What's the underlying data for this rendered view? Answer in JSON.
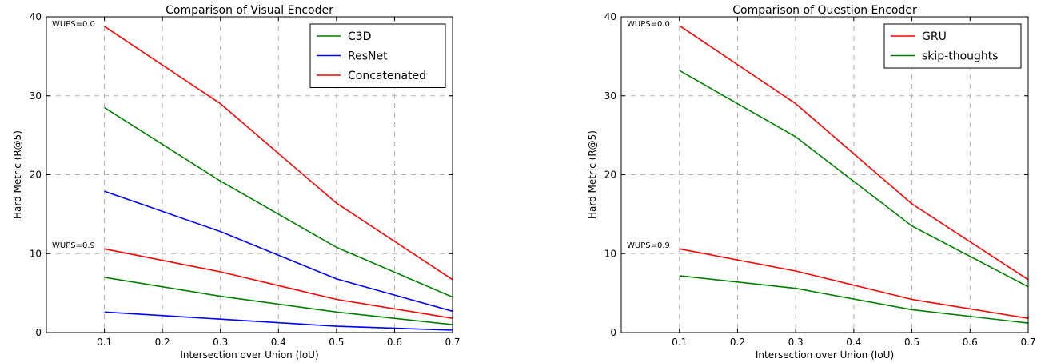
{
  "chart_data": [
    {
      "type": "line",
      "title": "Comparison of Visual Encoder",
      "xlabel": "Intersection over Union (IoU)",
      "ylabel": "Hard Metric (R@5)",
      "xlim": [
        0.0,
        0.7
      ],
      "ylim": [
        0,
        40
      ],
      "xticks": [
        "0.1",
        "0.2",
        "0.3",
        "0.4",
        "0.5",
        "0.6",
        "0.7"
      ],
      "yticks": [
        "0",
        "10",
        "20",
        "30",
        "40"
      ],
      "grid": true,
      "legend_position": "top-right",
      "annotations": [
        "WUPS=0.0",
        "WUPS=0.9"
      ],
      "legend": [
        {
          "label": "C3D",
          "color": "#008000"
        },
        {
          "label": "ResNet",
          "color": "#0000ff"
        },
        {
          "label": "Concatenated",
          "color": "#ff0000"
        }
      ],
      "x": [
        0.1,
        0.3,
        0.5,
        0.7
      ],
      "series": [
        {
          "color": "#ff0000",
          "values": [
            38.8,
            29.0,
            16.4,
            6.7
          ]
        },
        {
          "color": "#008000",
          "values": [
            28.5,
            19.2,
            10.8,
            4.5
          ]
        },
        {
          "color": "#0000ff",
          "values": [
            17.9,
            12.8,
            6.8,
            2.7
          ]
        },
        {
          "color": "#ff0000",
          "values": [
            10.6,
            7.7,
            4.2,
            1.8
          ]
        },
        {
          "color": "#008000",
          "values": [
            7.0,
            4.6,
            2.6,
            1.0
          ]
        },
        {
          "color": "#0000ff",
          "values": [
            2.6,
            1.7,
            0.8,
            0.3
          ]
        }
      ]
    },
    {
      "type": "line",
      "title": "Comparison of Question Encoder",
      "xlabel": "Intersection over Union (IoU)",
      "ylabel": "Hard Metric (R@5)",
      "xlim": [
        0.0,
        0.7
      ],
      "ylim": [
        0,
        40
      ],
      "xticks": [
        "0.1",
        "0.2",
        "0.3",
        "0.4",
        "0.5",
        "0.6",
        "0.7"
      ],
      "yticks": [
        "0",
        "10",
        "20",
        "30",
        "40"
      ],
      "grid": true,
      "legend_position": "top-right",
      "annotations": [
        "WUPS=0.0",
        "WUPS=0.9"
      ],
      "legend": [
        {
          "label": "GRU",
          "color": "#ff0000"
        },
        {
          "label": "skip-thoughts",
          "color": "#008000"
        }
      ],
      "x": [
        0.1,
        0.3,
        0.5,
        0.7
      ],
      "series": [
        {
          "color": "#ff0000",
          "values": [
            38.9,
            29.0,
            16.3,
            6.7
          ]
        },
        {
          "color": "#008000",
          "values": [
            33.2,
            24.8,
            13.5,
            5.8
          ]
        },
        {
          "color": "#ff0000",
          "values": [
            10.6,
            7.8,
            4.2,
            1.8
          ]
        },
        {
          "color": "#008000",
          "values": [
            7.2,
            5.6,
            2.9,
            1.2
          ]
        }
      ]
    }
  ]
}
